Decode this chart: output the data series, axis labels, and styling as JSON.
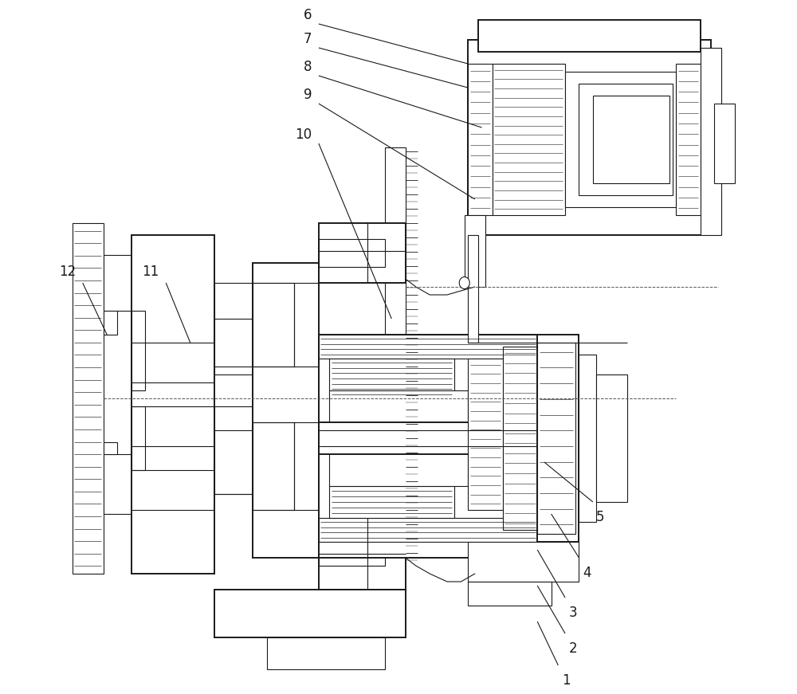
{
  "figsize": [
    10.0,
    8.71
  ],
  "dpi": 100,
  "bg": "#ffffff",
  "lc": "#1a1a1a",
  "lw": 0.8,
  "lw2": 1.4,
  "lw3": 2.0,
  "fs": 12
}
